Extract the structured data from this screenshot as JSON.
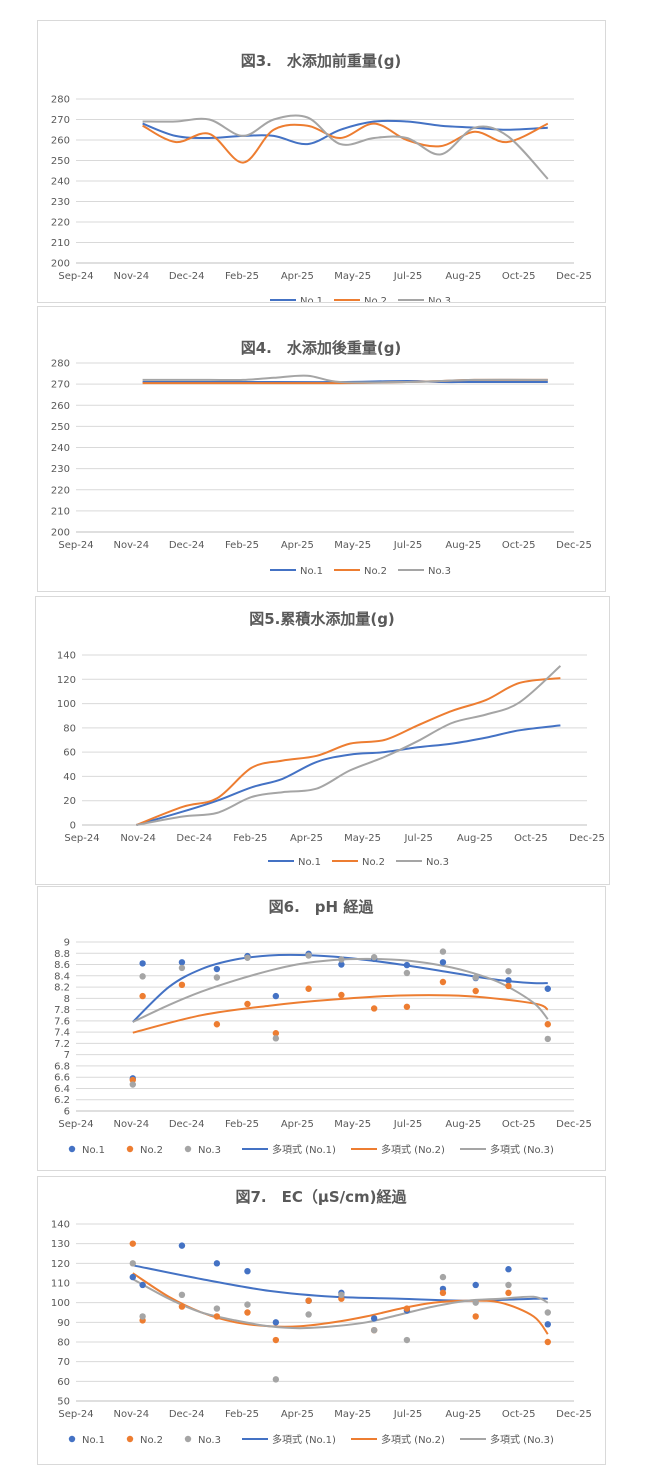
{
  "colors": {
    "No.1": "#4472c4",
    "No.2": "#ed7d31",
    "No.3": "#a5a5a5",
    "grid": "#d9d9d9",
    "text": "#595959"
  },
  "charts": [
    {
      "title": "図3.　水添加前重量(g)",
      "chart_data": {
        "type": "line",
        "x_tick_labels": [
          "Sep-24",
          "Nov-24",
          "Dec-24",
          "Feb-25",
          "Apr-25",
          "May-25",
          "Jul-25",
          "Aug-25",
          "Oct-25",
          "Dec-25"
        ],
        "ylim": [
          200,
          280
        ],
        "y_step": 10,
        "grid": true,
        "legend": "bottom",
        "series": [
          {
            "name": "No.1",
            "x": [
              "2024-11-01",
              "2024-12-01",
              "2025-01-01",
              "2025-02-01",
              "2025-03-01",
              "2025-04-01",
              "2025-05-01",
              "2025-06-01",
              "2025-07-01",
              "2025-08-01",
              "2025-09-01",
              "2025-10-01",
              "2025-11-07"
            ],
            "y": [
              268,
              262,
              261,
              262,
              262,
              258,
              265,
              269,
              269,
              267,
              266,
              265,
              266
            ]
          },
          {
            "name": "No.2",
            "x": [
              "2024-11-01",
              "2024-12-01",
              "2025-01-01",
              "2025-02-01",
              "2025-03-01",
              "2025-04-01",
              "2025-05-01",
              "2025-06-01",
              "2025-07-01",
              "2025-08-01",
              "2025-09-01",
              "2025-10-01",
              "2025-11-07"
            ],
            "y": [
              267,
              259,
              263,
              249,
              265,
              267,
              261,
              268,
              260,
              257,
              264,
              259,
              268
            ]
          },
          {
            "name": "No.3",
            "x": [
              "2024-11-01",
              "2024-12-01",
              "2025-01-01",
              "2025-02-01",
              "2025-03-01",
              "2025-04-01",
              "2025-05-01",
              "2025-06-01",
              "2025-07-01",
              "2025-08-01",
              "2025-09-01",
              "2025-10-01",
              "2025-11-07"
            ],
            "y": [
              269,
              269,
              270,
              262,
              270,
              271,
              258,
              261,
              261,
              253,
              266,
              262,
              241
            ]
          }
        ]
      }
    },
    {
      "title": "図4.　水添加後重量(g)",
      "chart_data": {
        "type": "line",
        "x_tick_labels": [
          "Sep-24",
          "Nov-24",
          "Dec-24",
          "Feb-25",
          "Apr-25",
          "May-25",
          "Jul-25",
          "Aug-25",
          "Oct-25",
          "Dec-25"
        ],
        "ylim": [
          200,
          280
        ],
        "y_step": 10,
        "grid": true,
        "legend": "bottom",
        "series": [
          {
            "name": "No.1",
            "x": [
              "2024-11-01",
              "2025-01-01",
              "2025-03-01",
              "2025-05-01",
              "2025-07-01",
              "2025-08-01",
              "2025-09-01",
              "2025-11-07"
            ],
            "y": [
              271,
              271,
              271,
              271,
              271.5,
              271,
              271,
              271
            ]
          },
          {
            "name": "No.2",
            "x": [
              "2024-11-01",
              "2025-01-01",
              "2025-03-01",
              "2025-05-01",
              "2025-07-01",
              "2025-08-01",
              "2025-09-01",
              "2025-11-07"
            ],
            "y": [
              270.5,
              270.5,
              270.5,
              270.5,
              271,
              271.5,
              272,
              272
            ]
          },
          {
            "name": "No.3",
            "x": [
              "2024-11-01",
              "2024-12-01",
              "2025-01-01",
              "2025-02-01",
              "2025-03-01",
              "2025-04-01",
              "2025-05-01",
              "2025-07-01",
              "2025-09-01",
              "2025-11-07"
            ],
            "y": [
              272,
              272,
              272,
              272,
              273,
              274,
              271,
              271,
              272,
              272
            ]
          }
        ]
      }
    },
    {
      "title": "図5.累積水添加量(g)",
      "chart_data": {
        "type": "line",
        "x_tick_labels": [
          "Sep-24",
          "Nov-24",
          "Dec-24",
          "Feb-25",
          "Apr-25",
          "May-25",
          "Jul-25",
          "Aug-25",
          "Oct-25",
          "Dec-25"
        ],
        "ylim": [
          0,
          140
        ],
        "y_step": 20,
        "grid": true,
        "legend": "bottom",
        "series": [
          {
            "name": "No.1",
            "x": [
              "2024-10-20",
              "2024-12-01",
              "2025-01-01",
              "2025-02-01",
              "2025-03-01",
              "2025-04-01",
              "2025-05-01",
              "2025-06-01",
              "2025-07-01",
              "2025-08-01",
              "2025-09-01",
              "2025-10-01",
              "2025-11-07"
            ],
            "y": [
              0,
              11,
              20,
              31,
              38,
              52,
              58,
              60,
              64,
              67,
              72,
              78,
              82
            ]
          },
          {
            "name": "No.2",
            "x": [
              "2024-10-20",
              "2024-12-01",
              "2025-01-01",
              "2025-02-01",
              "2025-03-01",
              "2025-04-01",
              "2025-05-01",
              "2025-06-01",
              "2025-07-01",
              "2025-08-01",
              "2025-09-01",
              "2025-10-01",
              "2025-11-07"
            ],
            "y": [
              0,
              15,
              22,
              47,
              53,
              57,
              67,
              70,
              82,
              94,
              103,
              117,
              121
            ]
          },
          {
            "name": "No.3",
            "x": [
              "2024-10-20",
              "2024-12-01",
              "2025-01-01",
              "2025-02-01",
              "2025-03-01",
              "2025-04-01",
              "2025-05-01",
              "2025-06-01",
              "2025-07-01",
              "2025-08-01",
              "2025-09-01",
              "2025-10-01",
              "2025-11-07"
            ],
            "y": [
              0,
              7,
              10,
              23,
              27,
              30,
              45,
              56,
              69,
              84,
              91,
              101,
              131
            ]
          }
        ]
      }
    },
    {
      "title": "図6.　pH 経過",
      "chart_data": {
        "type": "scatter",
        "x_tick_labels": [
          "Sep-24",
          "Nov-24",
          "Dec-24",
          "Feb-25",
          "Apr-25",
          "May-25",
          "Jul-25",
          "Aug-25",
          "Oct-25",
          "Dec-25"
        ],
        "ylim": [
          6,
          9
        ],
        "y_step": 0.2,
        "grid": true,
        "legend": "bottom",
        "x": [
          "2024-10-23",
          "2024-11-01",
          "2024-12-07",
          "2025-01-08",
          "2025-02-05",
          "2025-03-03",
          "2025-04-02",
          "2025-05-02",
          "2025-06-01",
          "2025-07-01",
          "2025-08-03",
          "2025-09-02",
          "2025-10-02",
          "2025-11-07"
        ],
        "series": [
          {
            "name": "No.1",
            "y": [
              6.58,
              8.62,
              8.64,
              8.52,
              8.75,
              8.04,
              8.79,
              8.6,
              8.7,
              8.59,
              8.64,
              8.36,
              8.32,
              8.17
            ]
          },
          {
            "name": "No.2",
            "y": [
              6.55,
              8.04,
              8.24,
              7.54,
              7.9,
              7.38,
              8.17,
              8.06,
              7.82,
              7.85,
              8.29,
              8.13,
              8.22,
              7.54
            ]
          },
          {
            "name": "No.3",
            "y": [
              6.47,
              8.39,
              8.54,
              8.37,
              8.72,
              7.29,
              8.76,
              8.69,
              8.73,
              8.45,
              8.83,
              8.37,
              8.48,
              7.28
            ]
          }
        ],
        "trendlines": [
          {
            "name": "多項式 (No.1)",
            "of": "No.1",
            "x": [
              "2024-10-23",
              "2024-11-25",
              "2024-12-25",
              "2025-01-25",
              "2025-02-25",
              "2025-03-25",
              "2025-04-25",
              "2025-05-25",
              "2025-06-25",
              "2025-07-25",
              "2025-08-25",
              "2025-09-25",
              "2025-10-25",
              "2025-11-07"
            ],
            "y": [
              7.58,
              8.2,
              8.52,
              8.69,
              8.76,
              8.77,
              8.74,
              8.68,
              8.6,
              8.51,
              8.41,
              8.32,
              8.27,
              8.27
            ]
          },
          {
            "name": "多項式 (No.2)",
            "of": "No.2",
            "x": [
              "2024-10-23",
              "2024-12-25",
              "2025-02-25",
              "2025-04-25",
              "2025-06-25",
              "2025-08-25",
              "2025-10-25",
              "2025-11-07"
            ],
            "y": [
              7.39,
              7.7,
              7.87,
              7.98,
              8.05,
              8.04,
              7.91,
              7.8
            ]
          },
          {
            "name": "多項式 (No.3)",
            "of": "No.3",
            "x": [
              "2024-10-23",
              "2024-11-25",
              "2024-12-25",
              "2025-01-25",
              "2025-02-25",
              "2025-03-25",
              "2025-04-25",
              "2025-05-25",
              "2025-06-25",
              "2025-07-25",
              "2025-08-25",
              "2025-09-25",
              "2025-10-25",
              "2025-11-07"
            ],
            "y": [
              7.58,
              7.88,
              8.12,
              8.32,
              8.49,
              8.61,
              8.68,
              8.7,
              8.68,
              8.61,
              8.48,
              8.27,
              7.92,
              7.63
            ]
          }
        ]
      }
    },
    {
      "title": "図7.　EC（μS/cm)経過",
      "chart_data": {
        "type": "scatter",
        "x_tick_labels": [
          "Sep-24",
          "Nov-24",
          "Dec-24",
          "Feb-25",
          "Apr-25",
          "May-25",
          "Jul-25",
          "Aug-25",
          "Oct-25",
          "Dec-25"
        ],
        "ylim": [
          50,
          140
        ],
        "y_step": 10,
        "grid": true,
        "legend": "bottom",
        "x": [
          "2024-10-23",
          "2024-11-01",
          "2024-12-07",
          "2025-01-08",
          "2025-02-05",
          "2025-03-03",
          "2025-04-02",
          "2025-05-02",
          "2025-06-01",
          "2025-07-01",
          "2025-08-03",
          "2025-09-02",
          "2025-10-02",
          "2025-11-07"
        ],
        "series": [
          {
            "name": "No.1",
            "y": [
              113,
              109,
              129,
              120,
              116,
              90,
              101,
              105,
              92,
              96,
              107,
              109,
              117,
              89
            ]
          },
          {
            "name": "No.2",
            "y": [
              130,
              91,
              98,
              93,
              95,
              81,
              101,
              102,
              86,
              97,
              105,
              93,
              105,
              80
            ]
          },
          {
            "name": "No.3",
            "y": [
              120,
              93,
              104,
              97,
              99,
              61,
              94,
              104,
              86,
              81,
              113,
              100,
              109,
              95
            ]
          }
        ],
        "trendlines": [
          {
            "name": "多項式 (No.1)",
            "of": "No.1",
            "x": [
              "2024-10-23",
              "2024-12-25",
              "2025-02-25",
              "2025-04-25",
              "2025-06-25",
              "2025-08-25",
              "2025-10-25",
              "2025-11-07"
            ],
            "y": [
              119,
              112,
              106,
              103,
              102,
              101,
              102,
              102
            ]
          },
          {
            "name": "多項式 (No.2)",
            "of": "No.2",
            "x": [
              "2024-10-23",
              "2024-11-25",
              "2024-12-25",
              "2025-01-25",
              "2025-02-25",
              "2025-03-25",
              "2025-04-25",
              "2025-05-25",
              "2025-06-25",
              "2025-07-25",
              "2025-08-25",
              "2025-09-25",
              "2025-10-25",
              "2025-11-07"
            ],
            "y": [
              115,
              103,
              95,
              90,
              88,
              88,
              90,
              93,
              97,
              100,
              101,
              100,
              93,
              84
            ]
          },
          {
            "name": "多項式 (No.3)",
            "of": "No.3",
            "x": [
              "2024-10-23",
              "2024-11-25",
              "2024-12-25",
              "2025-01-25",
              "2025-02-25",
              "2025-03-25",
              "2025-04-25",
              "2025-05-25",
              "2025-06-25",
              "2025-07-25",
              "2025-08-25",
              "2025-09-25",
              "2025-10-25",
              "2025-11-07"
            ],
            "y": [
              112,
              102,
              95,
              91,
              88,
              87,
              88,
              90,
              94,
              98,
              101,
              102,
              103,
              100
            ]
          }
        ]
      }
    }
  ]
}
